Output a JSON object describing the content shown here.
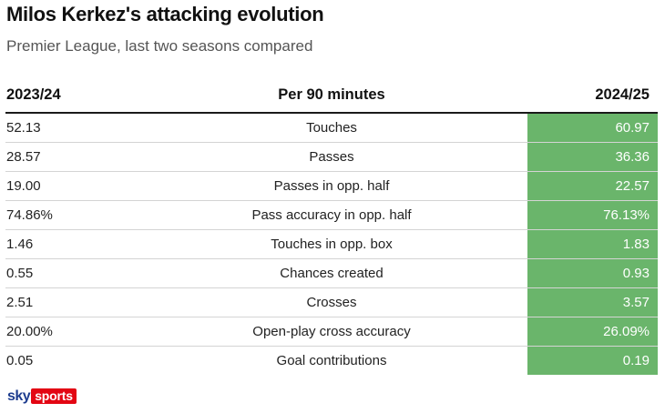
{
  "title": "Milos Kerkez's attacking evolution",
  "subtitle": "Premier League, last two seasons compared",
  "colors": {
    "highlight_column": "#6ab56b",
    "header_rule": "#1a1a1a",
    "row_divider": "#d4d4d4"
  },
  "chart_data": {
    "type": "table",
    "columns": [
      "2023/24",
      "Per 90 minutes",
      "2024/25"
    ],
    "rows": [
      {
        "metric": "Touches",
        "s2324": "52.13",
        "s2425": "60.97"
      },
      {
        "metric": "Passes",
        "s2324": "28.57",
        "s2425": "36.36"
      },
      {
        "metric": "Passes in opp. half",
        "s2324": "19.00",
        "s2425": "22.57"
      },
      {
        "metric": "Pass accuracy in opp. half",
        "s2324": "74.86%",
        "s2425": "76.13%"
      },
      {
        "metric": "Touches in opp. box",
        "s2324": "1.46",
        "s2425": "1.83"
      },
      {
        "metric": "Chances created",
        "s2324": "0.55",
        "s2425": "0.93"
      },
      {
        "metric": "Crosses",
        "s2324": "2.51",
        "s2425": "3.57"
      },
      {
        "metric": "Open-play cross accuracy",
        "s2324": "20.00%",
        "s2425": "26.09%"
      },
      {
        "metric": "Goal contributions",
        "s2324": "0.05",
        "s2425": "0.19"
      }
    ]
  },
  "logo": {
    "sky": "sky",
    "sports": "sports"
  }
}
